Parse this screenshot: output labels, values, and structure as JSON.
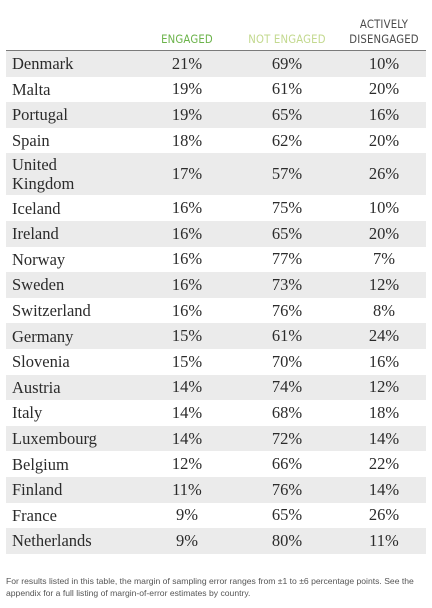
{
  "headers": {
    "engaged": "ENGAGED",
    "not_engaged": "NOT ENGAGED",
    "actively_line1": "ACTIVELY",
    "actively_line2": "DISENGAGED"
  },
  "rows": [
    {
      "country": "Denmark",
      "engaged": "21%",
      "not_engaged": "69%",
      "actively": "10%"
    },
    {
      "country": "Malta",
      "engaged": "19%",
      "not_engaged": "61%",
      "actively": "20%"
    },
    {
      "country": "Portugal",
      "engaged": "19%",
      "not_engaged": "65%",
      "actively": "16%"
    },
    {
      "country": "Spain",
      "engaged": "18%",
      "not_engaged": "62%",
      "actively": "20%"
    },
    {
      "country": "United",
      "country_line2": "Kingdom",
      "engaged": "17%",
      "not_engaged": "57%",
      "actively": "26%"
    },
    {
      "country": "Iceland",
      "engaged": "16%",
      "not_engaged": "75%",
      "actively": "10%"
    },
    {
      "country": "Ireland",
      "engaged": "16%",
      "not_engaged": "65%",
      "actively": "20%"
    },
    {
      "country": "Norway",
      "engaged": "16%",
      "not_engaged": "77%",
      "actively": "7%"
    },
    {
      "country": "Sweden",
      "engaged": "16%",
      "not_engaged": "73%",
      "actively": "12%"
    },
    {
      "country": "Switzerland",
      "engaged": "16%",
      "not_engaged": "76%",
      "actively": "8%"
    },
    {
      "country": "Germany",
      "engaged": "15%",
      "not_engaged": "61%",
      "actively": "24%"
    },
    {
      "country": "Slovenia",
      "engaged": "15%",
      "not_engaged": "70%",
      "actively": "16%"
    },
    {
      "country": "Austria",
      "engaged": "14%",
      "not_engaged": "74%",
      "actively": "12%"
    },
    {
      "country": "Italy",
      "engaged": "14%",
      "not_engaged": "68%",
      "actively": "18%"
    },
    {
      "country": "Luxembourg",
      "engaged": "14%",
      "not_engaged": "72%",
      "actively": "14%"
    },
    {
      "country": "Belgium",
      "engaged": "12%",
      "not_engaged": "66%",
      "actively": "22%"
    },
    {
      "country": "Finland",
      "engaged": "11%",
      "not_engaged": "76%",
      "actively": "14%"
    },
    {
      "country": "France",
      "engaged": "9%",
      "not_engaged": "65%",
      "actively": "26%"
    },
    {
      "country": "Netherlands",
      "engaged": "9%",
      "not_engaged": "80%",
      "actively": "11%"
    }
  ],
  "footnote": "For results listed in this table, the margin of sampling error ranges from ±1 to ±6 percentage points. See the appendix for a full listing of margin-of-error estimates by country.",
  "colors": {
    "engaged": "#6bb34a",
    "not_engaged": "#c3d98f",
    "actively": "#4a4a4a",
    "row_shade": "#ebebeb"
  }
}
